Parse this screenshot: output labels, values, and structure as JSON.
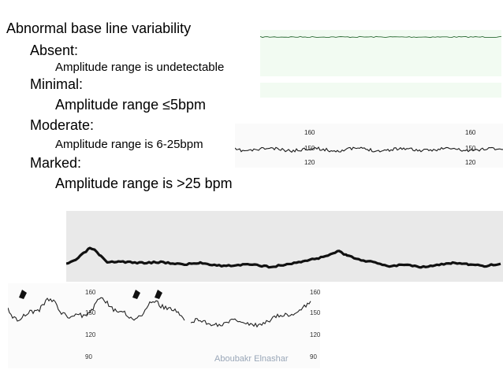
{
  "slide": {
    "title": "Abnormal base line variability",
    "categories": [
      {
        "heading": "Absent:",
        "description": "Amplitude range is undetectable"
      },
      {
        "heading": "Minimal:",
        "description": "Amplitude range ≤5bpm"
      },
      {
        "heading": "Moderate:",
        "description": "Amplitude range is 6-25bpm"
      },
      {
        "heading": "Marked:",
        "description": "Amplitude range is >25 bpm"
      }
    ],
    "credit": "Aboubakr Elnashar"
  },
  "strips": {
    "moderate_labels": [
      "160",
      "150",
      "120",
      "160",
      "150",
      "120"
    ],
    "marked_labels": [
      "160",
      "150",
      "120",
      "90",
      "160",
      "150",
      "120",
      "90"
    ]
  },
  "colors": {
    "absent_grid": "#3bb34a",
    "trace": "#1a1a1a"
  }
}
